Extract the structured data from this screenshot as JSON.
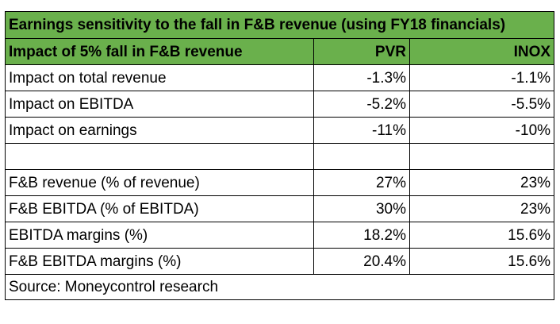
{
  "table": {
    "title": "Earnings sensitivity to the fall in F&B revenue (using FY18 financials)",
    "header": {
      "label": "Impact of 5% fall in F&B revenue",
      "col_pvr": "PVR",
      "col_inox": "INOX"
    },
    "rows": [
      {
        "label": "Impact on total revenue",
        "pvr": "-1.3%",
        "inox": "-1.1%"
      },
      {
        "label": "Impact on EBITDA",
        "pvr": "-5.2%",
        "inox": "-5.5%"
      },
      {
        "label": "Impact on earnings",
        "pvr": "-11%",
        "inox": "-10%"
      },
      {
        "label": "",
        "pvr": "",
        "inox": ""
      },
      {
        "label": "F&B revenue (% of revenue)",
        "pvr": "27%",
        "inox": "23%"
      },
      {
        "label": "F&B EBITDA (% of EBITDA)",
        "pvr": "30%",
        "inox": "23%"
      },
      {
        "label": "EBITDA margins (%)",
        "pvr": "18.2%",
        "inox": "15.6%"
      },
      {
        "label": "F&B EBITDA margins (%)",
        "pvr": "20.4%",
        "inox": "15.6%"
      }
    ],
    "source": "Source: Moneycontrol research"
  }
}
